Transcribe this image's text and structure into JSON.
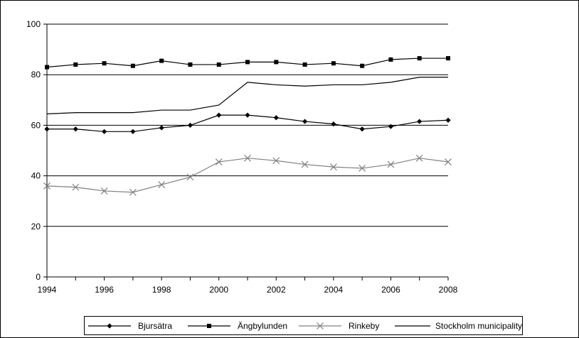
{
  "chart_data": {
    "type": "line",
    "title": "",
    "xlabel": "",
    "ylabel": "",
    "xlim": [
      1994,
      2008
    ],
    "ylim": [
      0,
      100
    ],
    "x_ticks": [
      1994,
      1996,
      1998,
      2000,
      2002,
      2004,
      2006,
      2008
    ],
    "y_ticks": [
      0,
      20,
      40,
      60,
      80,
      100
    ],
    "grid": "horizontal",
    "legend_position": "bottom",
    "x": [
      1994,
      1995,
      1996,
      1997,
      1998,
      1999,
      2000,
      2001,
      2002,
      2003,
      2004,
      2005,
      2006,
      2007,
      2008
    ],
    "series": [
      {
        "name": "Bjursätra",
        "marker": "diamond",
        "color": "#000000",
        "values": [
          58.5,
          58.5,
          57.5,
          57.5,
          59,
          60,
          64,
          64,
          63,
          61.5,
          60.5,
          58.5,
          59.5,
          61.5,
          62
        ]
      },
      {
        "name": "Ängbylunden",
        "marker": "square",
        "color": "#000000",
        "values": [
          83,
          84,
          84.5,
          83.5,
          85.5,
          84,
          84,
          85,
          85,
          84,
          84.5,
          83.5,
          86,
          86.5,
          86.5
        ]
      },
      {
        "name": "Rinkeby",
        "marker": "x",
        "color": "#808080",
        "values": [
          36,
          35.5,
          34,
          33.5,
          36.5,
          39.5,
          45.5,
          47,
          46,
          44.5,
          43.5,
          43,
          44.5,
          47,
          45.5
        ]
      },
      {
        "name": "Stockholm municipality",
        "marker": "none",
        "color": "#000000",
        "values": [
          64.5,
          65,
          65,
          65,
          66,
          66,
          68,
          77,
          76,
          75.5,
          76,
          76,
          77,
          79,
          79
        ]
      }
    ]
  }
}
